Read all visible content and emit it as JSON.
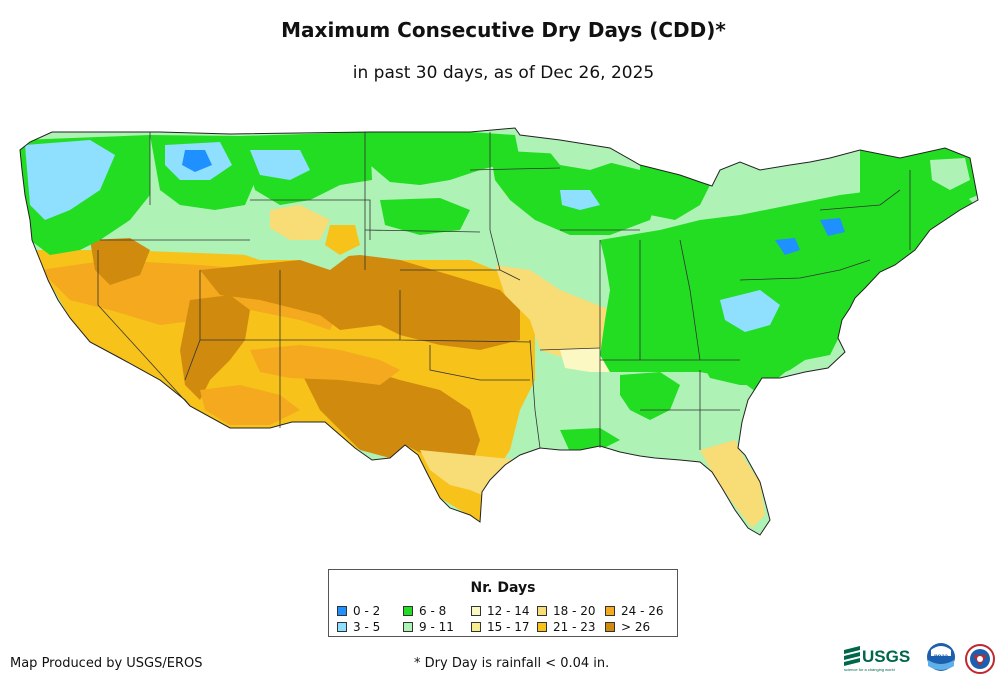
{
  "title": "Maximum Consecutive Dry Days (CDD)*",
  "subtitle": "in past 30 days, as of Dec 26, 2025",
  "legend": {
    "title": "Nr. Days",
    "items": [
      {
        "label": "0 - 2",
        "color": "#1e90ff"
      },
      {
        "label": "3 - 5",
        "color": "#8fe0ff"
      },
      {
        "label": "6 - 8",
        "color": "#22dd22"
      },
      {
        "label": "9 - 11",
        "color": "#aef2b6"
      },
      {
        "label": "12 - 14",
        "color": "#fbf8c4"
      },
      {
        "label": "15 - 17",
        "color": "#f7ee8e"
      },
      {
        "label": "18 - 20",
        "color": "#f8dc75"
      },
      {
        "label": "21 - 23",
        "color": "#f7c21a"
      },
      {
        "label": "24 - 26",
        "color": "#f4a91e"
      },
      {
        "label": "> 26",
        "color": "#d08a0e"
      }
    ]
  },
  "footer": {
    "credit": "Map Produced by USGS/EROS",
    "note": "* Dry Day is rainfall < 0.04 in."
  },
  "logos": {
    "usgs_text": "USGS",
    "usgs_tagline": "science for a changing world",
    "noaa_text": "noaa"
  }
}
